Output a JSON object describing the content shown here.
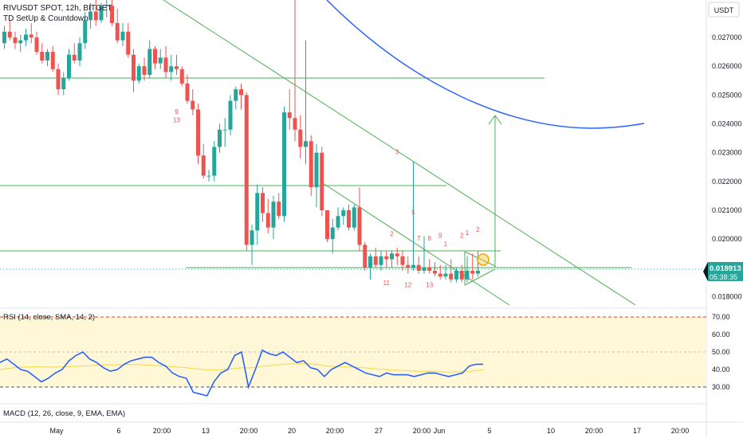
{
  "header": {
    "symbol_line": "RIVUSDT SPOT, 12h, BITGET",
    "indicator_line": "TD SetUp & Countdown"
  },
  "currency_label": "USDT",
  "price_badge": {
    "price": "0.018913",
    "countdown": "05:38:35"
  },
  "rsi_panel": {
    "title": "RSI (14, close, SMA, 14, 2)",
    "ticks": [
      "70.00",
      "60.00",
      "50.00",
      "40.00",
      "30.00"
    ]
  },
  "macd_panel": {
    "title": "MACD (12, 26, close, 9, EMA, EMA)"
  },
  "colors": {
    "bull": "#26a69a",
    "bear": "#ef5350",
    "trend": "#4caf50",
    "curve": "#2962ff",
    "rsi": "#2962ff",
    "rsi_ma": "#f5d64a",
    "rsi_band": "#fff7d6",
    "rsi_level": "#e53935",
    "marker": "#f7c948"
  },
  "chart_data": {
    "type": "candlestick",
    "y_axis_ticks": [
      "0.027000",
      "0.026000",
      "0.025000",
      "0.024000",
      "0.023000",
      "0.022000",
      "0.021000",
      "0.020000",
      "0.018000"
    ],
    "ylim": [
      0.0176,
      0.0283
    ],
    "x_axis_ticks": [
      "May",
      "6",
      "20:00",
      "13",
      "20:00",
      "20",
      "20:00",
      "27",
      "20:00",
      "Jun",
      "5",
      "10",
      "20:00",
      "17",
      "20:00"
    ],
    "candles": [
      [
        0.0268,
        0.0274,
        0.0266,
        0.0272
      ],
      [
        0.0272,
        0.0276,
        0.0269,
        0.027
      ],
      [
        0.027,
        0.0272,
        0.0266,
        0.0268
      ],
      [
        0.0268,
        0.0271,
        0.0265,
        0.0269
      ],
      [
        0.0269,
        0.0273,
        0.0267,
        0.0271
      ],
      [
        0.0271,
        0.0275,
        0.0268,
        0.027
      ],
      [
        0.027,
        0.0272,
        0.0264,
        0.0265
      ],
      [
        0.0265,
        0.0268,
        0.0261,
        0.0262
      ],
      [
        0.0262,
        0.0266,
        0.026,
        0.0265
      ],
      [
        0.0265,
        0.0267,
        0.0258,
        0.0259
      ],
      [
        0.0259,
        0.0261,
        0.025,
        0.0252
      ],
      [
        0.0252,
        0.0258,
        0.025,
        0.0256
      ],
      [
        0.0256,
        0.0266,
        0.0255,
        0.0264
      ],
      [
        0.0264,
        0.0268,
        0.0261,
        0.0262
      ],
      [
        0.0262,
        0.027,
        0.026,
        0.0268
      ],
      [
        0.0268,
        0.0279,
        0.0266,
        0.0276
      ],
      [
        0.0276,
        0.0282,
        0.0273,
        0.0279
      ],
      [
        0.0279,
        0.0283,
        0.0274,
        0.0276
      ],
      [
        0.0276,
        0.0282,
        0.0275,
        0.0281
      ],
      [
        0.0281,
        0.0283,
        0.0277,
        0.0281
      ],
      [
        0.0281,
        0.0283,
        0.0274,
        0.0275
      ],
      [
        0.0275,
        0.028,
        0.0268,
        0.0269
      ],
      [
        0.0269,
        0.0275,
        0.0267,
        0.0272
      ],
      [
        0.0272,
        0.0275,
        0.0263,
        0.0264
      ],
      [
        0.0264,
        0.0266,
        0.0251,
        0.0255
      ],
      [
        0.0255,
        0.0261,
        0.0254,
        0.026
      ],
      [
        0.026,
        0.0263,
        0.0255,
        0.0257
      ],
      [
        0.0257,
        0.0269,
        0.0256,
        0.0266
      ],
      [
        0.0266,
        0.0267,
        0.0259,
        0.0261
      ],
      [
        0.0261,
        0.0266,
        0.0259,
        0.0263
      ],
      [
        0.0263,
        0.0267,
        0.0256,
        0.0258
      ],
      [
        0.0258,
        0.0264,
        0.0255,
        0.026
      ],
      [
        0.026,
        0.0264,
        0.0257,
        0.0259
      ],
      [
        0.0259,
        0.026,
        0.0253,
        0.0254
      ],
      [
        0.0254,
        0.0257,
        0.0247,
        0.0248
      ],
      [
        0.0248,
        0.0252,
        0.0243,
        0.0245
      ],
      [
        0.0245,
        0.0247,
        0.0226,
        0.0229
      ],
      [
        0.0229,
        0.0233,
        0.0221,
        0.0222
      ],
      [
        0.0222,
        0.0224,
        0.022,
        0.0222
      ],
      [
        0.0222,
        0.0234,
        0.022,
        0.0232
      ],
      [
        0.0232,
        0.024,
        0.023,
        0.0238
      ],
      [
        0.0238,
        0.0242,
        0.0232,
        0.0238
      ],
      [
        0.0238,
        0.025,
        0.0236,
        0.0248
      ],
      [
        0.0248,
        0.0253,
        0.0245,
        0.0252
      ],
      [
        0.0252,
        0.0254,
        0.0245,
        0.025
      ],
      [
        0.025,
        0.0251,
        0.0196,
        0.0198
      ],
      [
        0.0198,
        0.0205,
        0.0191,
        0.0203
      ],
      [
        0.0203,
        0.0219,
        0.0198,
        0.0216
      ],
      [
        0.0216,
        0.0218,
        0.0206,
        0.0209
      ],
      [
        0.0209,
        0.0214,
        0.0202,
        0.0204
      ],
      [
        0.0204,
        0.0215,
        0.02,
        0.0213
      ],
      [
        0.0213,
        0.0216,
        0.0207,
        0.0208
      ],
      [
        0.0208,
        0.0246,
        0.0206,
        0.0244
      ],
      [
        0.0244,
        0.0252,
        0.0238,
        0.0242
      ],
      [
        0.0242,
        0.0285,
        0.0234,
        0.0238
      ],
      [
        0.0238,
        0.0243,
        0.0228,
        0.0232
      ],
      [
        0.0232,
        0.0269,
        0.0226,
        0.0234
      ],
      [
        0.0234,
        0.0236,
        0.0215,
        0.0218
      ],
      [
        0.0218,
        0.0233,
        0.0211,
        0.023
      ],
      [
        0.023,
        0.0232,
        0.0208,
        0.021
      ],
      [
        0.021,
        0.021,
        0.0199,
        0.02
      ],
      [
        0.02,
        0.0207,
        0.0195,
        0.0204
      ],
      [
        0.0204,
        0.0211,
        0.0203,
        0.0208
      ],
      [
        0.0208,
        0.0211,
        0.0205,
        0.021
      ],
      [
        0.021,
        0.0212,
        0.0203,
        0.0204
      ],
      [
        0.0204,
        0.0212,
        0.0203,
        0.0211
      ],
      [
        0.0211,
        0.0218,
        0.0196,
        0.0198
      ],
      [
        0.0198,
        0.0199,
        0.0189,
        0.019
      ],
      [
        0.019,
        0.0195,
        0.0186,
        0.0194
      ],
      [
        0.0194,
        0.0197,
        0.019,
        0.0191
      ],
      [
        0.0191,
        0.0196,
        0.0189,
        0.0194
      ],
      [
        0.0194,
        0.0196,
        0.019,
        0.0193
      ],
      [
        0.0193,
        0.0196,
        0.019,
        0.0195
      ],
      [
        0.0195,
        0.0197,
        0.0191,
        0.0194
      ],
      [
        0.0194,
        0.0196,
        0.0189,
        0.0191
      ],
      [
        0.0191,
        0.0194,
        0.0188,
        0.019
      ],
      [
        0.019,
        0.0227,
        0.0189,
        0.0191
      ],
      [
        0.0191,
        0.0194,
        0.0188,
        0.0189
      ],
      [
        0.0189,
        0.0201,
        0.0188,
        0.019
      ],
      [
        0.019,
        0.0193,
        0.0188,
        0.0189
      ],
      [
        0.0189,
        0.0192,
        0.0187,
        0.0188
      ],
      [
        0.0188,
        0.0191,
        0.0186,
        0.0187
      ],
      [
        0.0187,
        0.0191,
        0.0186,
        0.0188
      ],
      [
        0.0188,
        0.0193,
        0.0185,
        0.0186
      ],
      [
        0.0186,
        0.019,
        0.0185,
        0.0189
      ],
      [
        0.0189,
        0.0191,
        0.0185,
        0.0186
      ],
      [
        0.0186,
        0.0194,
        0.0185,
        0.0189
      ],
      [
        0.0189,
        0.0195,
        0.0186,
        0.0188
      ],
      [
        0.0188,
        0.0196,
        0.0187,
        0.0189
      ]
    ],
    "td_labels": [
      {
        "text": "9",
        "bar": 32,
        "price": 0.02435
      },
      {
        "text": "13",
        "bar": 32,
        "price": 0.02405
      },
      {
        "text": "3",
        "bar": 73,
        "price": 0.02295
      },
      {
        "text": "5",
        "bar": 76,
        "price": 0.02085
      },
      {
        "text": "2",
        "bar": 72,
        "price": 0.0201
      },
      {
        "text": "7",
        "bar": 77,
        "price": 0.01995
      },
      {
        "text": "8",
        "bar": 79,
        "price": 0.01995
      },
      {
        "text": "9",
        "bar": 81,
        "price": 0.02005
      },
      {
        "text": "1",
        "bar": 82,
        "price": 0.01975
      },
      {
        "text": "2",
        "bar": 85,
        "price": 0.02005
      },
      {
        "text": "1",
        "bar": 86,
        "price": 0.02015
      },
      {
        "text": "2",
        "bar": 88,
        "price": 0.02025
      },
      {
        "text": "11",
        "bar": 71,
        "price": 0.0184
      },
      {
        "text": "12",
        "bar": 75,
        "price": 0.01833
      },
      {
        "text": "13",
        "bar": 79,
        "price": 0.01833
      }
    ],
    "rsi": [
      44,
      46,
      43,
      40,
      39,
      36,
      33,
      35,
      38,
      40,
      45,
      48,
      50,
      46,
      44,
      41,
      39,
      40,
      43,
      45,
      46,
      47,
      47,
      44,
      42,
      38,
      36,
      35,
      27,
      26,
      25,
      33,
      38,
      40,
      48,
      50,
      30,
      40,
      51,
      49,
      48,
      50,
      47,
      44,
      45,
      41,
      40,
      36,
      40,
      42,
      44,
      42,
      40,
      38,
      37,
      36,
      38,
      37,
      37,
      37,
      36,
      37,
      38,
      38,
      37,
      36,
      37,
      38,
      42,
      43,
      43
    ],
    "rsi_ma": [
      40,
      40.5,
      41,
      41.3,
      41.5,
      41.6,
      41.5,
      41.4,
      41.4,
      41.5,
      41.6,
      41.8,
      42,
      42.2,
      42.5,
      42.6,
      42.6,
      42.7,
      42.8,
      42.9,
      42.8,
      42.6,
      42.4,
      42.2,
      41.9,
      41.6,
      41.3,
      41,
      40.6,
      40.2,
      39.8,
      39.8,
      39.8,
      40.2,
      40.6,
      41,
      40.9,
      41.2,
      41.8,
      42.2,
      42.5,
      43,
      43.2,
      43.3,
      43.4,
      43.3,
      42.8,
      42.2,
      41.8,
      41.6,
      41.5,
      41.4,
      41.2,
      40.9,
      40.6,
      40.2,
      39.9,
      39.7,
      39.5,
      39.3,
      39.1,
      38.9,
      38.8,
      38.7,
      38.6,
      38.5,
      38.5,
      38.7,
      39,
      39.4,
      39.8
    ]
  }
}
